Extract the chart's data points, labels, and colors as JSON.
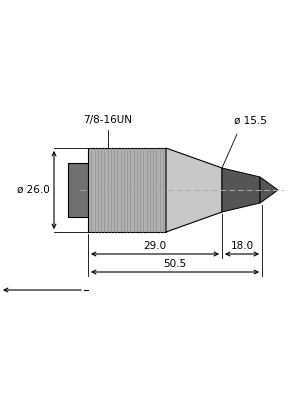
{
  "bg_color": "#ffffff",
  "knurl_color": "#b0b0b0",
  "knurl_line_color": "#888888",
  "body_color": "#c8c8c8",
  "nut_color": "#707070",
  "cable_color": "#555555",
  "dim_color": "#000000",
  "centerline_color": "#aaaaaa",
  "thread_label": "7/8-16UN",
  "dia_large_label": "ø 26.0",
  "dia_small_label": "ø 15.5",
  "dim_29_label": "29.0",
  "dim_18_label": "18.0",
  "dim_50_label": "50.5",
  "fig_width": 2.99,
  "fig_height": 4.0,
  "dpi": 100
}
